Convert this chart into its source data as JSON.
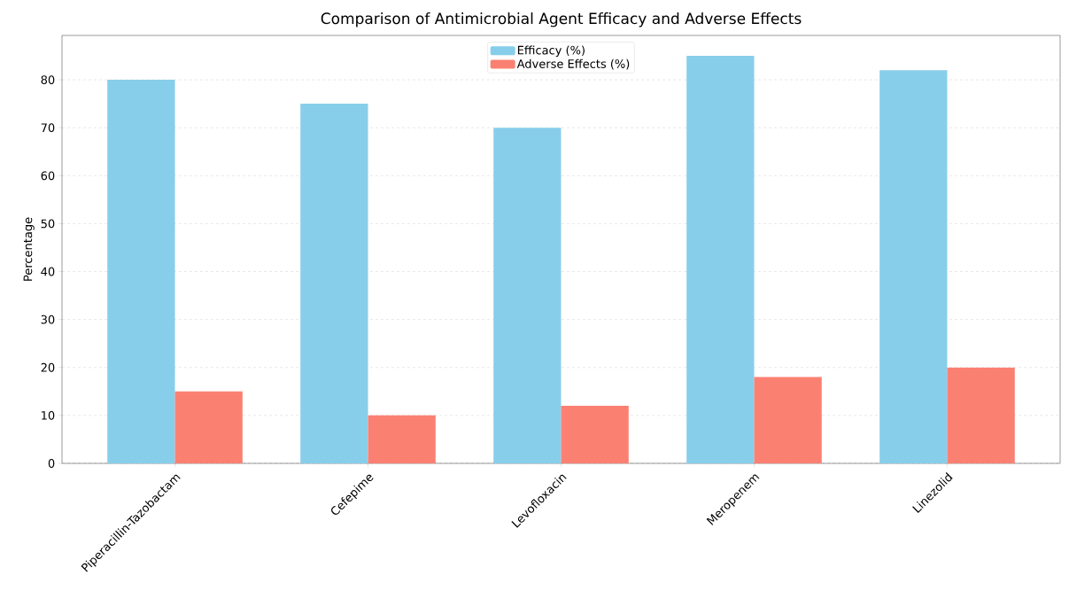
{
  "chart_data": {
    "type": "bar",
    "title": "Comparison of Antimicrobial Agent Efficacy and Adverse Effects",
    "ylabel": "Percentage",
    "categories": [
      "Piperacillin-Tazobactam",
      "Cefepime",
      "Levofloxacin",
      "Meropenem",
      "Linezolid"
    ],
    "series": [
      {
        "name": "Efficacy (%)",
        "color": "#87ceeb",
        "values": [
          80,
          75,
          70,
          85,
          82
        ]
      },
      {
        "name": "Adverse Effects (%)",
        "color": "#fa8072",
        "values": [
          15,
          10,
          12,
          18,
          20
        ]
      }
    ],
    "ylim": [
      0,
      89.25
    ],
    "yticks": [
      0,
      10,
      20,
      30,
      40,
      50,
      60,
      70,
      80
    ],
    "grid": "y",
    "legend": "top"
  }
}
